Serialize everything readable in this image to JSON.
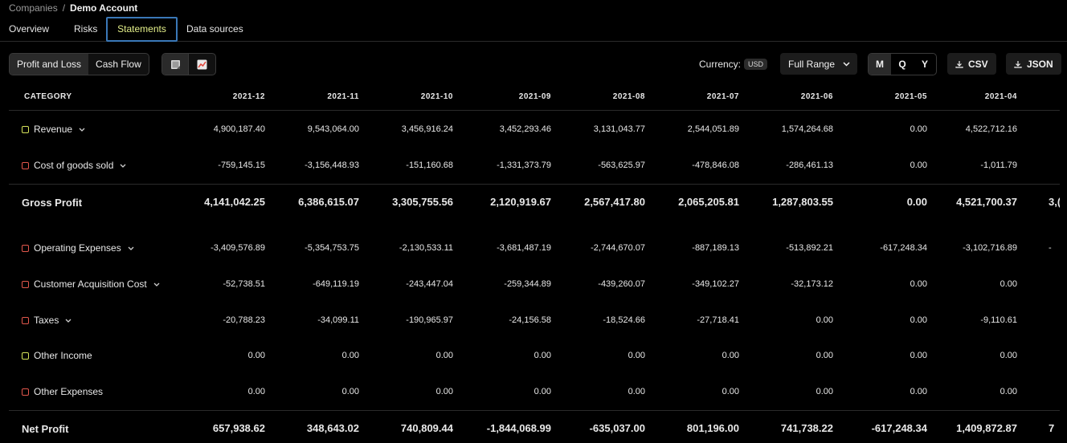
{
  "breadcrumb": {
    "parent": "Companies",
    "separator": "/",
    "current": "Demo Account"
  },
  "tabs": [
    {
      "label": "Overview",
      "active": false
    },
    {
      "label": "Risks",
      "active": false
    },
    {
      "label": "Statements",
      "active": true
    },
    {
      "label": "Data sources",
      "active": false
    }
  ],
  "toolbar": {
    "statement_types": [
      {
        "label": "Profit and Loss",
        "active": true
      },
      {
        "label": "Cash Flow",
        "active": false
      }
    ],
    "view_toggle": [
      {
        "icon": "table-icon",
        "active": true
      },
      {
        "icon": "line-chart-icon",
        "active": false
      }
    ],
    "currency_label": "Currency:",
    "currency_value": "USD",
    "range_label": "Full Range",
    "periods": [
      {
        "label": "M",
        "active": true
      },
      {
        "label": "Q",
        "active": false
      },
      {
        "label": "Y",
        "active": false
      }
    ],
    "csv_label": "CSV",
    "json_label": "JSON"
  },
  "colors": {
    "revenue_marker": "#d6e35a",
    "cost_marker": "#e2574c",
    "active_tab_text": "#e4f08a",
    "active_tab_border": "#3a78b8"
  },
  "table": {
    "category_header": "CATEGORY",
    "columns": [
      "2021-12",
      "2021-11",
      "2021-10",
      "2021-09",
      "2021-08",
      "2021-07",
      "2021-06",
      "2021-05",
      "2021-04"
    ],
    "rows": [
      {
        "label": "Revenue",
        "marker": "green",
        "expandable": true,
        "bold": false,
        "values": [
          "4,900,187.40",
          "9,543,064.00",
          "3,456,916.24",
          "3,452,293.46",
          "3,131,043.77",
          "2,544,051.89",
          "1,574,264.68",
          "0.00",
          "4,522,712.16"
        ]
      },
      {
        "label": "Cost of goods sold",
        "marker": "red",
        "expandable": true,
        "bold": false,
        "values": [
          "-759,145.15",
          "-3,156,448.93",
          "-151,160.68",
          "-1,331,373.79",
          "-563,625.97",
          "-478,846.08",
          "-286,461.13",
          "0.00",
          "-1,011.79"
        ]
      },
      {
        "label": "Gross Profit",
        "marker": "",
        "expandable": false,
        "bold": true,
        "values": [
          "4,141,042.25",
          "6,386,615.07",
          "3,305,755.56",
          "2,120,919.67",
          "2,567,417.80",
          "2,065,205.81",
          "1,287,803.55",
          "0.00",
          "4,521,700.37"
        ],
        "overflow": "3,("
      },
      {
        "label": "Operating Expenses",
        "marker": "red",
        "expandable": true,
        "bold": false,
        "values": [
          "-3,409,576.89",
          "-5,354,753.75",
          "-2,130,533.11",
          "-3,681,487.19",
          "-2,744,670.07",
          "-887,189.13",
          "-513,892.21",
          "-617,248.34",
          "-3,102,716.89"
        ],
        "overflow": "-"
      },
      {
        "label": "Customer Acquisition Cost",
        "marker": "red",
        "expandable": true,
        "bold": false,
        "values": [
          "-52,738.51",
          "-649,119.19",
          "-243,447.04",
          "-259,344.89",
          "-439,260.07",
          "-349,102.27",
          "-32,173.12",
          "0.00",
          "0.00"
        ]
      },
      {
        "label": "Taxes",
        "marker": "red",
        "expandable": true,
        "bold": false,
        "values": [
          "-20,788.23",
          "-34,099.11",
          "-190,965.97",
          "-24,156.58",
          "-18,524.66",
          "-27,718.41",
          "0.00",
          "0.00",
          "-9,110.61"
        ]
      },
      {
        "label": "Other Income",
        "marker": "green",
        "expandable": false,
        "bold": false,
        "values": [
          "0.00",
          "0.00",
          "0.00",
          "0.00",
          "0.00",
          "0.00",
          "0.00",
          "0.00",
          "0.00"
        ]
      },
      {
        "label": "Other Expenses",
        "marker": "red",
        "expandable": false,
        "bold": false,
        "values": [
          "0.00",
          "0.00",
          "0.00",
          "0.00",
          "0.00",
          "0.00",
          "0.00",
          "0.00",
          "0.00"
        ]
      },
      {
        "label": "Net Profit",
        "marker": "",
        "expandable": false,
        "bold": true,
        "values": [
          "657,938.62",
          "348,643.02",
          "740,809.44",
          "-1,844,068.99",
          "-635,037.00",
          "801,196.00",
          "741,738.22",
          "-617,248.34",
          "1,409,872.87"
        ],
        "overflow": "7"
      }
    ]
  }
}
